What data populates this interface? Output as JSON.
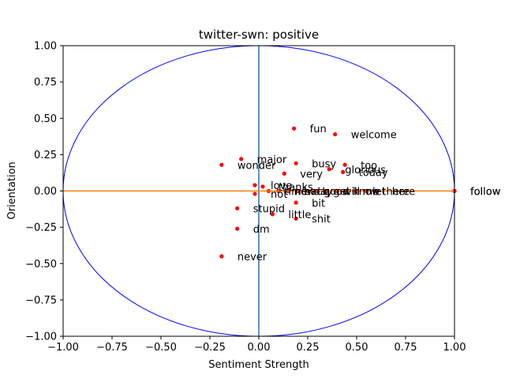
{
  "chart_data": {
    "type": "scatter",
    "title": "twitter-swn: positive",
    "xlabel": "Sentiment Strength",
    "ylabel": "Orientation",
    "xlim": [
      -1.0,
      1.0
    ],
    "ylim": [
      -1.0,
      1.0
    ],
    "xticks": [
      -1.0,
      -0.75,
      -0.5,
      -0.25,
      0.0,
      0.25,
      0.5,
      0.75,
      1.0
    ],
    "yticks": [
      -1.0,
      -0.75,
      -0.5,
      -0.25,
      0.0,
      0.25,
      0.5,
      0.75,
      1.0
    ],
    "xtick_labels": [
      "−1.00",
      "−0.75",
      "−0.50",
      "−0.25",
      "0.00",
      "0.25",
      "0.50",
      "0.75",
      "1.00"
    ],
    "ytick_labels": [
      "−1.00",
      "−0.75",
      "−0.50",
      "−0.25",
      "0.00",
      "0.25",
      "0.50",
      "0.75",
      "1.00"
    ],
    "grid": false,
    "colors": {
      "points": "#ff0000",
      "circle": "#0000ff",
      "horizontal_line": "#ff7f0e",
      "vertical_line": "#1f77b4"
    },
    "reference_lines": {
      "horizontal_y": 0.0,
      "vertical_x": 0.0,
      "unit_circle_radius": 1.0
    },
    "points": [
      {
        "x": 0.18,
        "y": 0.43,
        "label": "fun"
      },
      {
        "x": 0.39,
        "y": 0.39,
        "label": "welcome"
      },
      {
        "x": -0.09,
        "y": 0.22,
        "label": "major"
      },
      {
        "x": -0.19,
        "y": 0.18,
        "label": "wonder"
      },
      {
        "x": 0.19,
        "y": 0.19,
        "label": "busy"
      },
      {
        "x": 0.36,
        "y": 0.15,
        "label": "glorious"
      },
      {
        "x": 0.44,
        "y": 0.18,
        "label": "too"
      },
      {
        "x": 0.13,
        "y": 0.12,
        "label": "very"
      },
      {
        "x": 0.43,
        "y": 0.13,
        "label": "today"
      },
      {
        "x": -0.02,
        "y": 0.04,
        "label": "love"
      },
      {
        "x": 0.02,
        "y": 0.03,
        "label": "thanks"
      },
      {
        "x": -0.02,
        "y": -0.02,
        "label": "not"
      },
      {
        "x": 0.19,
        "y": -0.08,
        "label": "bit"
      },
      {
        "x": -0.11,
        "y": -0.12,
        "label": "stupid"
      },
      {
        "x": 0.07,
        "y": -0.16,
        "label": "little"
      },
      {
        "x": 0.19,
        "y": -0.19,
        "label": "shit"
      },
      {
        "x": -0.11,
        "y": -0.26,
        "label": "dm"
      },
      {
        "x": -0.19,
        "y": -0.45,
        "label": "never"
      },
      {
        "x": 1.0,
        "y": 0.0,
        "label": "follow"
      },
      {
        "x": 1.0,
        "y": 0.0,
        "label": "follow"
      },
      {
        "x": 0.6,
        "y": 0.0,
        "label": "here"
      },
      {
        "x": 0.55,
        "y": 0.0,
        "label": "there"
      },
      {
        "x": 0.5,
        "y": 0.0,
        "label": "let"
      },
      {
        "x": 0.45,
        "y": 0.0,
        "label": "me"
      },
      {
        "x": 0.4,
        "y": 0.0,
        "label": "know"
      },
      {
        "x": 0.35,
        "y": 0.0,
        "label": "will"
      },
      {
        "x": 0.3,
        "y": 0.0,
        "label": "get"
      },
      {
        "x": 0.25,
        "y": 0.0,
        "label": "good"
      },
      {
        "x": 0.2,
        "y": 0.0,
        "label": "day"
      },
      {
        "x": 0.15,
        "y": 0.0,
        "label": "back"
      },
      {
        "x": 0.1,
        "y": 0.0,
        "label": "new"
      },
      {
        "x": 0.05,
        "y": 0.0,
        "label": "time"
      }
    ]
  }
}
